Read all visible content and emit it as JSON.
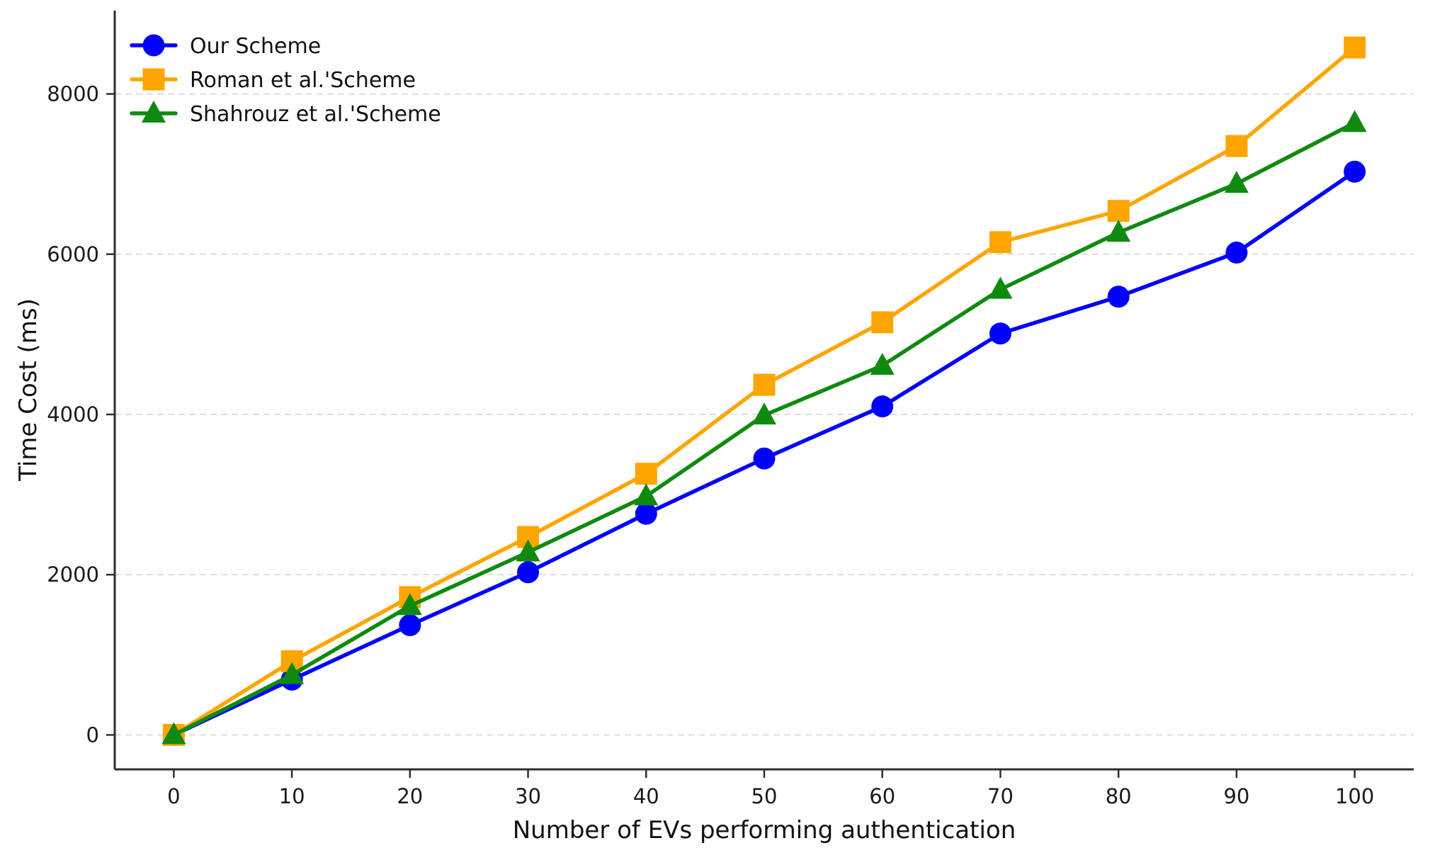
{
  "chart_data": {
    "type": "line",
    "title": "",
    "xlabel": "Number of EVs performing authentication",
    "ylabel": "Time Cost (ms)",
    "x": [
      0,
      10,
      20,
      30,
      40,
      50,
      60,
      70,
      80,
      90,
      100
    ],
    "series": [
      {
        "name": "Our Scheme",
        "marker": "circle",
        "color": "#0000ff",
        "values": [
          0,
          690,
          1370,
          2030,
          2760,
          3450,
          4100,
          5010,
          5470,
          6020,
          7030
        ]
      },
      {
        "name": "Roman et al.'Scheme",
        "marker": "square",
        "color": "#ffa500",
        "values": [
          0,
          920,
          1720,
          2470,
          3260,
          4370,
          5150,
          6150,
          6540,
          7350,
          8580
        ]
      },
      {
        "name": "Shahrouz et al.'Scheme",
        "marker": "triangle",
        "color": "#0f8a0f",
        "values": [
          0,
          750,
          1610,
          2280,
          2980,
          3990,
          4610,
          5560,
          6270,
          6880,
          7640
        ]
      }
    ],
    "xticks": [
      0,
      10,
      20,
      30,
      40,
      50,
      60,
      70,
      80,
      90,
      100
    ],
    "yticks": [
      0,
      2000,
      4000,
      6000,
      8000
    ],
    "xlim": [
      -5,
      105
    ],
    "ylim": [
      -430,
      9040
    ],
    "grid": "horizontal-dashed",
    "legend_position": "upper-left",
    "colors": {
      "grid": "#dedede",
      "spine": "#2e2e2e",
      "tick_label": "#1a1a1a",
      "background": "#ffffff"
    }
  }
}
